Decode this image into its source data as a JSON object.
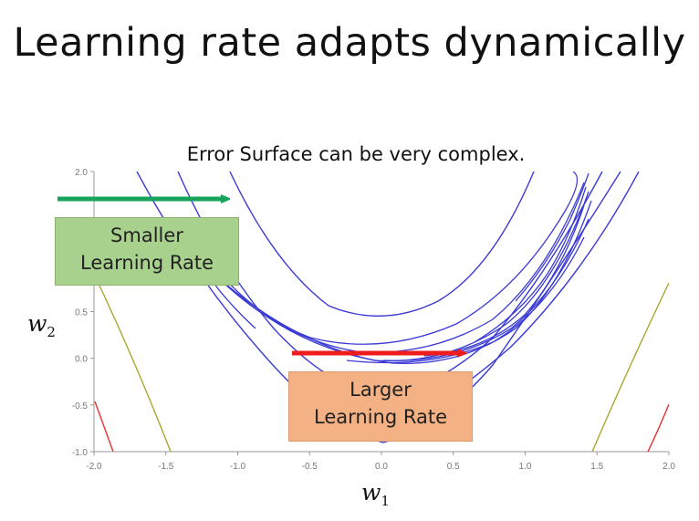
{
  "title": "Learning rate adapts dynamically",
  "chart_data": {
    "type": "contour",
    "subtitle": "Error Surface can be very complex.",
    "xlabel": "w1",
    "ylabel": "w2",
    "xlim": [
      -2.0,
      2.0
    ],
    "ylim": [
      -1.0,
      2.0
    ],
    "x_ticks": [
      "-2.0",
      "-1.5",
      "-1.0",
      "-0.5",
      "0.0",
      "0.5",
      "1.0",
      "1.5",
      "2.0"
    ],
    "y_ticks": [
      "-1.0",
      "-0.5",
      "0.0",
      "0.5",
      "2.0"
    ],
    "contour_color": "#3a3ad6",
    "annotations": [
      {
        "text_lines": [
          "Smaller",
          "Learning Rate"
        ],
        "box_color": "#a9d18e",
        "arrow_color": "#17a35a"
      },
      {
        "text_lines": [
          "Larger",
          "Learning Rate"
        ],
        "box_color": "#f4b183",
        "arrow_color": "#ee1c1c"
      }
    ]
  }
}
